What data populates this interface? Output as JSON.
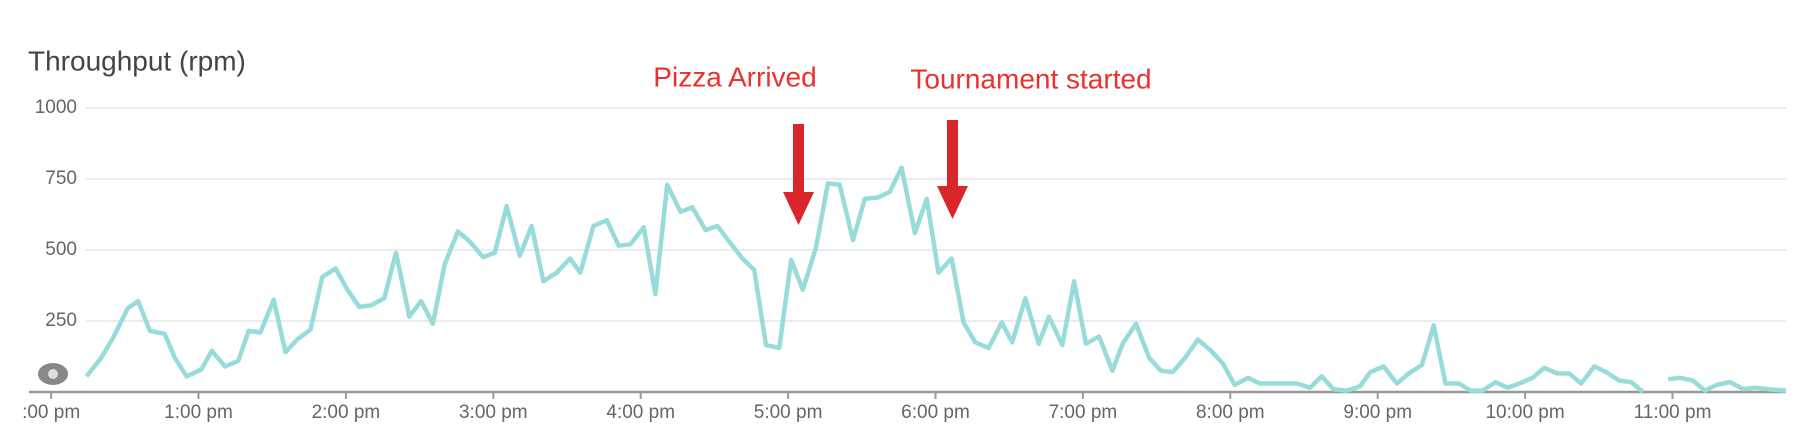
{
  "chart_data": {
    "type": "line",
    "title": "Throughput (rpm)",
    "annotations": [
      "Pizza Arrived",
      "Tournament started"
    ],
    "color": "#97dcda",
    "x": [
      0.24,
      0.34,
      0.42,
      0.52,
      0.59,
      0.67,
      0.77,
      0.84,
      0.92,
      1.02,
      1.09,
      1.18,
      1.27,
      1.34,
      1.42,
      1.51,
      1.59,
      1.67,
      1.76,
      1.84,
      1.93,
      2.01,
      2.09,
      2.17,
      2.26,
      2.34,
      2.43,
      2.51,
      2.59,
      2.67,
      2.76,
      2.84,
      2.93,
      3.01,
      3.09,
      3.18,
      3.26,
      3.34,
      3.43,
      3.52,
      3.59,
      3.68,
      3.77,
      3.85,
      3.93,
      4.02,
      4.1,
      4.18,
      4.27,
      4.35,
      4.44,
      4.52,
      4.6,
      4.69,
      4.77,
      4.85,
      4.94,
      5.02,
      5.1,
      5.19,
      5.27,
      5.35,
      5.44,
      5.52,
      5.61,
      5.69,
      5.77,
      5.86,
      5.94,
      6.02,
      6.11,
      6.19,
      6.27,
      6.36,
      6.45,
      6.52,
      6.61,
      6.7,
      6.77,
      6.86,
      6.94,
      7.02,
      7.11,
      7.2,
      7.27,
      7.36,
      7.45,
      7.53,
      7.61,
      7.7,
      7.78,
      7.87,
      7.95,
      8.03,
      8.12,
      8.2,
      8.28,
      8.37,
      8.45,
      8.54,
      8.62,
      8.7,
      8.79,
      8.88,
      8.95,
      9.04,
      9.13,
      9.21,
      9.3,
      9.38,
      9.46,
      9.55,
      9.63,
      9.71,
      9.8,
      9.88,
      9.96,
      10.05,
      10.13,
      10.22,
      10.3,
      10.38,
      10.47,
      10.55,
      10.64,
      10.72,
      10.8,
      10.89,
      10.97,
      11.05,
      11.14,
      11.22,
      11.3,
      11.39,
      11.48,
      11.56,
      11.65,
      11.77
    ],
    "values": [
      55,
      120,
      190,
      295,
      320,
      215,
      205,
      120,
      55,
      80,
      145,
      90,
      110,
      215,
      210,
      325,
      140,
      185,
      220,
      405,
      435,
      360,
      300,
      305,
      330,
      490,
      265,
      320,
      240,
      450,
      565,
      530,
      475,
      490,
      655,
      480,
      585,
      390,
      420,
      470,
      420,
      585,
      605,
      515,
      520,
      580,
      345,
      730,
      635,
      650,
      570,
      585,
      530,
      470,
      430,
      165,
      155,
      465,
      360,
      510,
      735,
      730,
      535,
      680,
      685,
      705,
      790,
      560,
      680,
      420,
      470,
      245,
      175,
      155,
      245,
      175,
      330,
      170,
      265,
      165,
      390,
      170,
      195,
      75,
      170,
      240,
      120,
      75,
      70,
      125,
      185,
      145,
      100,
      25,
      50,
      30,
      30,
      30,
      30,
      15,
      55,
      10,
      5,
      20,
      70,
      90,
      30,
      65,
      95,
      235,
      30,
      30,
      5,
      5,
      35,
      15,
      30,
      50,
      85,
      65,
      65,
      30,
      90,
      70,
      40,
      35,
      0,
      null,
      45,
      50,
      40,
      5,
      25,
      35,
      10,
      15,
      10,
      5
    ],
    "xlim": [
      -0.15,
      11.77
    ],
    "xticks": [
      {
        "value": 0,
        "label": ":00 pm"
      },
      {
        "value": 1,
        "label": "1:00 pm"
      },
      {
        "value": 2,
        "label": "2:00 pm"
      },
      {
        "value": 3,
        "label": "3:00 pm"
      },
      {
        "value": 4,
        "label": "4:00 pm"
      },
      {
        "value": 5,
        "label": "5:00 pm"
      },
      {
        "value": 6,
        "label": "6:00 pm"
      },
      {
        "value": 7,
        "label": "7:00 pm"
      },
      {
        "value": 8,
        "label": "8:00 pm"
      },
      {
        "value": 9,
        "label": "9:00 pm"
      },
      {
        "value": 10,
        "label": "10:00 pm"
      },
      {
        "value": 11,
        "label": "11:00 pm"
      }
    ],
    "ylim": [
      0,
      1000
    ],
    "yticks": [
      250,
      500,
      750,
      1000
    ],
    "grid": true
  }
}
